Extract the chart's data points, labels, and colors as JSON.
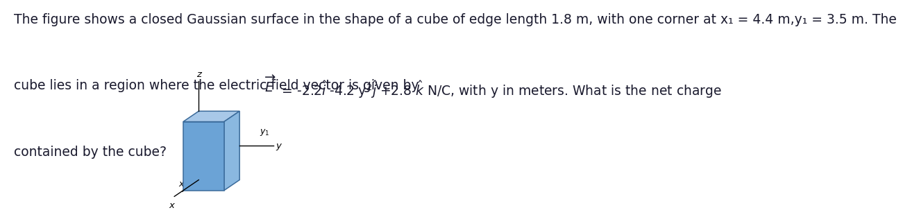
{
  "text_line1": "The figure shows a closed Gaussian surface in the shape of a cube of edge length 1.8 m, with one corner at x₁ = 4.4 m,y₁ = 3.5 m. The",
  "text_line2_pre": "cube lies in a region where the electric field vector is given by  ",
  "text_line3": "contained by the cube?",
  "background_color": "#ffffff",
  "cube_front_color": "#6ba3d6",
  "cube_top_color": "#a8c8e8",
  "cube_right_color": "#8ab8e0",
  "cube_edge_color": "#3a6a9a",
  "text_color": "#1a1a2e",
  "font_size": 13.5
}
